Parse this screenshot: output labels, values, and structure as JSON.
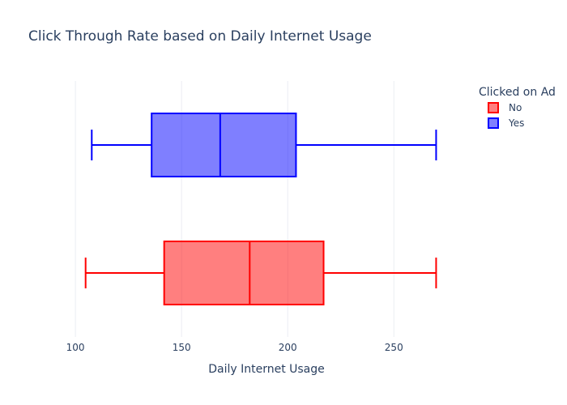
{
  "chart_data": {
    "type": "box",
    "orientation": "horizontal",
    "title": "Click Through Rate based on Daily Internet Usage",
    "xlabel": "Daily Internet Usage",
    "ylabel": "",
    "xlim": [
      95,
      285
    ],
    "x_ticks": [
      100,
      150,
      200,
      250
    ],
    "grid": true,
    "legend": {
      "title": "Clicked on Ad",
      "position": "top-right"
    },
    "series": [
      {
        "name": "No",
        "color": "#ff0000",
        "fill": "rgba(255,0,0,0.5)",
        "min": 104.8,
        "q1": 141.8,
        "median": 182.1,
        "q3": 216.9,
        "max": 269.9
      },
      {
        "name": "Yes",
        "color": "#0000ff",
        "fill": "rgba(0,0,255,0.5)",
        "min": 107.7,
        "q1": 135.9,
        "median": 168.2,
        "q3": 203.9,
        "max": 269.9
      }
    ]
  }
}
